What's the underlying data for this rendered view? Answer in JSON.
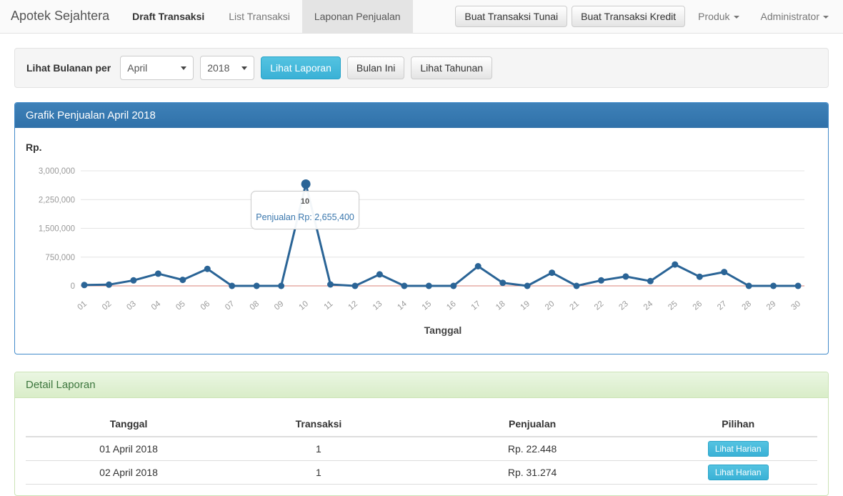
{
  "navbar": {
    "brand": "Apotek Sejahtera",
    "items": [
      {
        "label": "Draft Transaksi",
        "active": false
      },
      {
        "label": "List Transaksi",
        "active": false
      },
      {
        "label": "Laponan Penjualan",
        "active": true
      }
    ],
    "buttons": [
      "Buat Transaksi Tunai",
      "Buat Transaksi Kredit"
    ],
    "dropdowns": [
      "Produk",
      "Administrator"
    ]
  },
  "filter": {
    "label": "Lihat Bulanan per",
    "month_select": {
      "value": "April"
    },
    "year_select": {
      "value": "2018"
    },
    "buttons": {
      "primary": "Lihat Laporan",
      "current_month": "Bulan Ini",
      "yearly": "Lihat Tahunan"
    }
  },
  "chart_panel": {
    "title": "Grafik Penjualan April 2018",
    "y_unit_label": "Rp.",
    "x_axis_title": "Tanggal"
  },
  "chart_data": {
    "type": "line",
    "title": "Grafik Penjualan April 2018",
    "series_name": "Penjualan",
    "xlabel": "Tanggal",
    "ylabel": "Rp.",
    "categories": [
      "01",
      "02",
      "03",
      "04",
      "05",
      "06",
      "07",
      "08",
      "09",
      "10",
      "11",
      "12",
      "13",
      "14",
      "15",
      "16",
      "17",
      "18",
      "19",
      "20",
      "21",
      "22",
      "23",
      "24",
      "25",
      "26",
      "27",
      "28",
      "29",
      "30"
    ],
    "values": [
      22448,
      31274,
      144000,
      319000,
      156000,
      444000,
      0,
      0,
      0,
      2655400,
      37000,
      0,
      300000,
      0,
      0,
      0,
      512000,
      81000,
      0,
      343000,
      0,
      144000,
      244000,
      125000,
      557000,
      238000,
      362000,
      0,
      0,
      0
    ],
    "ylim": [
      0,
      3000000
    ],
    "yticks": [
      0,
      750000,
      1500000,
      2250000,
      3000000
    ],
    "ytick_labels": [
      "0",
      "750,000",
      "1,500,000",
      "2,250,000",
      "3,000,000"
    ],
    "grid": true,
    "legend": "none",
    "line_color": "#2a6496",
    "zero_line_color": "#d9837a",
    "grid_color": "#e4e4e4",
    "tick_label_color": "#9a9a9a",
    "highlight_index": 9,
    "tooltip": {
      "title": "10",
      "text": "Penjualan Rp: 2,655,400"
    }
  },
  "detail_panel": {
    "title": "Detail Laporan",
    "table": {
      "headers": [
        "Tanggal",
        "Transaksi",
        "Penjualan",
        "Pilihan"
      ],
      "rows": [
        {
          "tanggal": "01 April 2018",
          "transaksi": "1",
          "penjualan": "Rp. 22.448",
          "action": "Lihat Harian"
        },
        {
          "tanggal": "02 April 2018",
          "transaksi": "1",
          "penjualan": "Rp. 31.274",
          "action": "Lihat Harian"
        }
      ]
    }
  },
  "colors": {
    "primary_panel": "#3071a9",
    "info_button": "#3ab1d6",
    "success_text": "#3c763d",
    "chart_line": "#2a6496",
    "chart_zero_line": "#d9837a"
  }
}
